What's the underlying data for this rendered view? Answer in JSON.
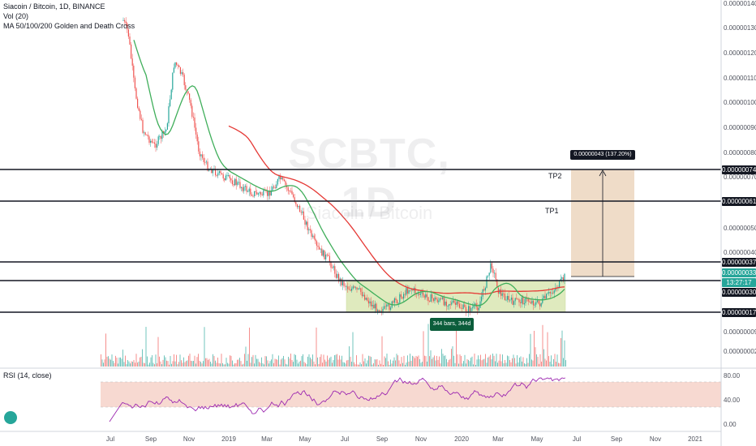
{
  "legend": {
    "title": "Siacoin / Bitcoin, 1D, BINANCE",
    "vol": "Vol (20)",
    "ma": "MA 50/100/200 Golden and Death Cross",
    "rsi": "RSI (14, close)"
  },
  "watermark": {
    "symbol": "SCBTC, 1D",
    "name": "Siacoin / Bitcoin"
  },
  "price_axis": [
    "0.00000140",
    "0.00000130",
    "0.00000120",
    "0.00000110",
    "0.00000100",
    "0.00000090",
    "0.00000080",
    "0.00000070",
    "0.00000050",
    "0.00000040",
    "0.00000009",
    "0.00000002"
  ],
  "rsi_axis": [
    "80.00",
    "40.00",
    "0.00"
  ],
  "price_tags": [
    {
      "label": "0.00000074",
      "style": "dark"
    },
    {
      "label": "0.00000061",
      "style": "dark"
    },
    {
      "label": "0.00000037",
      "style": "dark"
    },
    {
      "label": "0.00000033",
      "style": "green"
    },
    {
      "label": "13:27:17",
      "style": "green"
    },
    {
      "label": "0.00000030",
      "style": "dark"
    },
    {
      "label": "0.00000017",
      "style": "dark"
    }
  ],
  "time_axis": [
    "Jul",
    "Sep",
    "Nov",
    "2019",
    "Mar",
    "May",
    "Jul",
    "Sep",
    "Nov",
    "2020",
    "Mar",
    "May",
    "Jul",
    "Sep",
    "Nov",
    "2021"
  ],
  "annotations": {
    "tp1": "TP1",
    "tp2": "TP2",
    "measure": "0.00000043 (137.20%) 43",
    "bars": "344 bars, 344d"
  },
  "colors": {
    "up": "#26a69a",
    "down": "#ef5350",
    "ma_fast": "#3fae5a",
    "ma_slow": "#e53935",
    "rsi": "#9c27b0",
    "rsi_band": "#f6d5cc",
    "box": "#c5d98a"
  }
}
